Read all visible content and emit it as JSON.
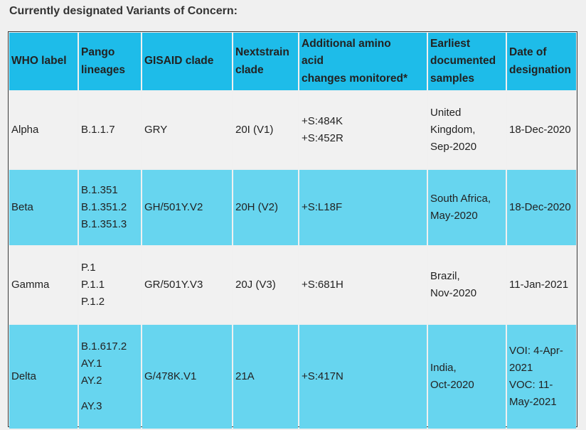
{
  "heading": "Currently designated Variants of Concern:",
  "columns": [
    [
      "WHO label"
    ],
    [
      "Pango",
      "lineages"
    ],
    [
      "GISAID clade"
    ],
    [
      "Nextstrain",
      "clade"
    ],
    [
      "Additional amino",
      "acid",
      "changes monitored*"
    ],
    [
      "Earliest",
      "documented",
      "samples"
    ],
    [
      "Date of",
      "designation"
    ]
  ],
  "rows": [
    {
      "who_label": "Alpha",
      "pango": [
        "B.1.1.7"
      ],
      "gisaid": "GRY",
      "nextstrain": "20I (V1)",
      "amino": [
        "+S:484K",
        "+S:452R"
      ],
      "earliest": [
        "United",
        "Kingdom,",
        "Sep-2020"
      ],
      "date": [
        "18-Dec-2020"
      ]
    },
    {
      "who_label": "Beta",
      "pango": [
        "B.1.351",
        "B.1.351.2",
        "B.1.351.3"
      ],
      "gisaid": "GH/501Y.V2",
      "nextstrain": "20H (V2)",
      "amino": [
        "+S:L18F"
      ],
      "earliest": [
        "South Africa,",
        "May-2020"
      ],
      "date": [
        "18-Dec-2020"
      ]
    },
    {
      "who_label": "Gamma",
      "pango": [
        "P.1",
        "P.1.1",
        "P.1.2"
      ],
      "gisaid": "GR/501Y.V3",
      "nextstrain": "20J (V3)",
      "amino": [
        "+S:681H"
      ],
      "earliest": [
        "Brazil,",
        "Nov-2020"
      ],
      "date": [
        "11-Jan-2021"
      ]
    },
    {
      "who_label": "Delta",
      "pango": [
        "B.1.617.2",
        "AY.1",
        "AY.2",
        "",
        "AY.3"
      ],
      "gisaid": "G/478K.V1",
      "nextstrain": "21A",
      "amino": [
        "+S:417N"
      ],
      "earliest": [
        "India,",
        "Oct-2020"
      ],
      "date": [
        "VOI: 4-Apr-",
        "2021",
        "VOC: 11-",
        "May-2021"
      ]
    }
  ]
}
